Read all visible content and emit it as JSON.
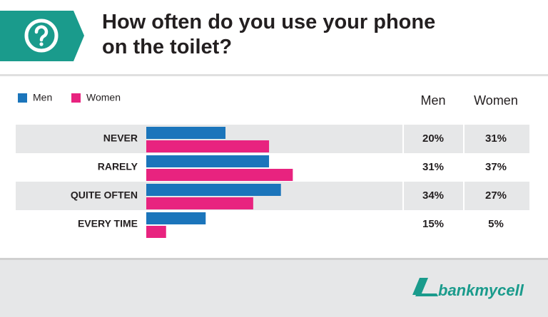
{
  "chart_data": {
    "type": "bar",
    "orientation": "horizontal",
    "title": "How often do you use your phone on the toilet?",
    "categories": [
      "NEVER",
      "RARELY",
      "QUITE OFTEN",
      "EVERY TIME"
    ],
    "series": [
      {
        "name": "Men",
        "color": "#1b75bb",
        "values": [
          20,
          31,
          34,
          15
        ],
        "value_labels": [
          "20%",
          "31%",
          "34%",
          "15%"
        ]
      },
      {
        "name": "Women",
        "color": "#e8237f",
        "values": [
          31,
          37,
          27,
          5
        ],
        "value_labels": [
          "31%",
          "37%",
          "27%",
          "5%"
        ]
      }
    ],
    "brand": "bankmycell"
  }
}
